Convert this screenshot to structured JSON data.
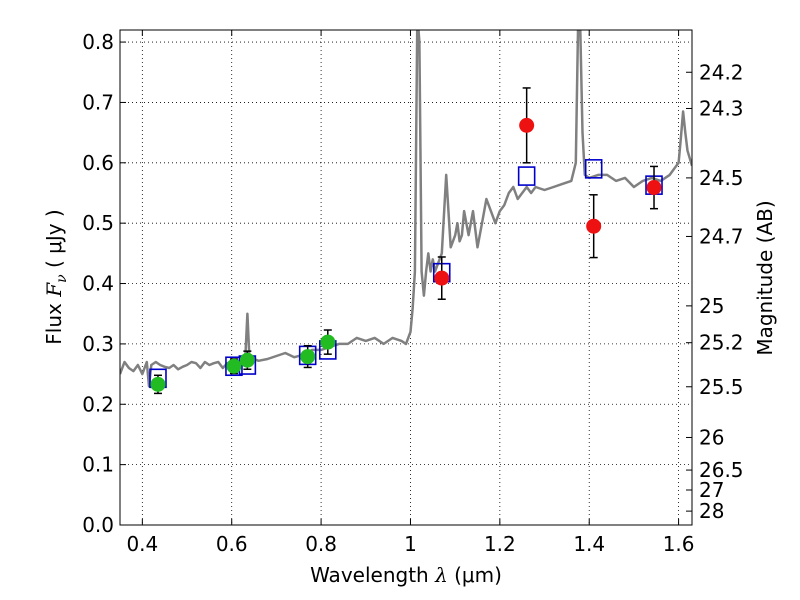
{
  "chart_data": {
    "type": "line",
    "xlabel": {
      "prefix": "Wavelength  ",
      "symbol": "λ",
      "unit": " (μm)"
    },
    "ylabel": {
      "prefix": "Flux  ",
      "symbol": "F",
      "sub": "ν",
      "unit": "  ( μJy )"
    },
    "ylabel_right": "Magnitude (AB)",
    "xlim": [
      0.35,
      1.63
    ],
    "ylim": [
      0.0,
      0.82
    ],
    "grid": true,
    "x_ticks": [
      0.4,
      0.6,
      0.8,
      1.0,
      1.2,
      1.4,
      1.6
    ],
    "x_tick_labels": [
      "0.4",
      "0.6",
      "0.8",
      "1",
      "1.2",
      "1.4",
      "1.6"
    ],
    "y_ticks": [
      0.0,
      0.1,
      0.2,
      0.3,
      0.4,
      0.5,
      0.6,
      0.7,
      0.8
    ],
    "y_tick_labels": [
      "0.0",
      "0.1",
      "0.2",
      "0.3",
      "0.4",
      "0.5",
      "0.6",
      "0.7",
      "0.8"
    ],
    "right_ticks": [
      {
        "label": "24.2",
        "flux": 0.75
      },
      {
        "label": "24.3",
        "flux": 0.69
      },
      {
        "label": "24.5",
        "flux": 0.575
      },
      {
        "label": "24.7",
        "flux": 0.478
      },
      {
        "label": "25",
        "flux": 0.363
      },
      {
        "label": "25.2",
        "flux": 0.302
      },
      {
        "label": "25.5",
        "flux": 0.229
      },
      {
        "label": "26",
        "flux": 0.145
      },
      {
        "label": "26.5",
        "flux": 0.091
      },
      {
        "label": "27",
        "flux": 0.058
      },
      {
        "label": "28",
        "flux": 0.023
      }
    ],
    "colors": {
      "spectrum": "#808080",
      "model_squares": "#0000cc",
      "green_points": "#22bb22",
      "red_points": "#ee1111",
      "grid": "#000000",
      "errorbar": "#000000"
    },
    "series": [
      {
        "kind": "spectrum",
        "x": [
          0.35,
          0.36,
          0.37,
          0.38,
          0.39,
          0.4,
          0.41,
          0.415,
          0.42,
          0.43,
          0.44,
          0.45,
          0.46,
          0.47,
          0.48,
          0.49,
          0.5,
          0.51,
          0.52,
          0.53,
          0.54,
          0.55,
          0.56,
          0.57,
          0.58,
          0.59,
          0.6,
          0.61,
          0.62,
          0.63,
          0.635,
          0.64,
          0.645,
          0.65,
          0.66,
          0.68,
          0.7,
          0.72,
          0.74,
          0.76,
          0.78,
          0.8,
          0.82,
          0.84,
          0.86,
          0.88,
          0.9,
          0.92,
          0.94,
          0.96,
          0.98,
          0.99,
          1.0,
          1.005,
          1.01,
          1.015,
          1.018,
          1.02,
          1.025,
          1.03,
          1.035,
          1.04,
          1.045,
          1.05,
          1.055,
          1.06,
          1.07,
          1.08,
          1.09,
          1.1,
          1.105,
          1.11,
          1.115,
          1.12,
          1.13,
          1.14,
          1.15,
          1.16,
          1.17,
          1.18,
          1.19,
          1.2,
          1.21,
          1.22,
          1.23,
          1.24,
          1.25,
          1.26,
          1.27,
          1.28,
          1.3,
          1.32,
          1.34,
          1.36,
          1.37,
          1.375,
          1.38,
          1.385,
          1.39,
          1.4,
          1.42,
          1.44,
          1.46,
          1.48,
          1.5,
          1.52,
          1.54,
          1.56,
          1.58,
          1.59,
          1.6,
          1.605,
          1.61,
          1.615,
          1.62,
          1.63
        ],
        "y": [
          0.25,
          0.27,
          0.26,
          0.255,
          0.265,
          0.25,
          0.27,
          0.23,
          0.265,
          0.27,
          0.265,
          0.262,
          0.26,
          0.265,
          0.258,
          0.262,
          0.265,
          0.27,
          0.268,
          0.26,
          0.27,
          0.265,
          0.268,
          0.27,
          0.26,
          0.268,
          0.27,
          0.26,
          0.268,
          0.27,
          0.35,
          0.27,
          0.28,
          0.275,
          0.272,
          0.275,
          0.28,
          0.285,
          0.278,
          0.282,
          0.29,
          0.29,
          0.295,
          0.3,
          0.3,
          0.31,
          0.305,
          0.31,
          0.3,
          0.31,
          0.305,
          0.3,
          0.32,
          0.36,
          0.42,
          0.82,
          0.82,
          0.8,
          0.42,
          0.38,
          0.42,
          0.45,
          0.42,
          0.44,
          0.42,
          0.43,
          0.45,
          0.58,
          0.46,
          0.48,
          0.5,
          0.47,
          0.48,
          0.52,
          0.48,
          0.52,
          0.46,
          0.5,
          0.54,
          0.52,
          0.5,
          0.52,
          0.53,
          0.55,
          0.56,
          0.54,
          0.55,
          0.56,
          0.55,
          0.56,
          0.555,
          0.56,
          0.565,
          0.57,
          0.6,
          0.82,
          0.82,
          0.65,
          0.58,
          0.575,
          0.58,
          0.58,
          0.57,
          0.575,
          0.56,
          0.57,
          0.575,
          0.57,
          0.58,
          0.59,
          0.6,
          0.64,
          0.685,
          0.65,
          0.62,
          0.595
        ]
      },
      {
        "kind": "model-squares",
        "x": [
          0.435,
          0.605,
          0.635,
          0.77,
          0.815,
          1.07,
          1.26,
          1.41,
          1.545
        ],
        "y": [
          0.243,
          0.263,
          0.265,
          0.281,
          0.29,
          0.418,
          0.578,
          0.59,
          0.563
        ]
      },
      {
        "kind": "green-points",
        "x": [
          0.435,
          0.605,
          0.635,
          0.77,
          0.815
        ],
        "y": [
          0.233,
          0.263,
          0.273,
          0.279,
          0.303
        ],
        "err": [
          0.015,
          0.012,
          0.015,
          0.018,
          0.02
        ]
      },
      {
        "kind": "red-points",
        "x": [
          1.07,
          1.26,
          1.41,
          1.545
        ],
        "y": [
          0.409,
          0.662,
          0.495,
          0.559
        ],
        "err": [
          0.035,
          0.062,
          0.052,
          0.035
        ]
      }
    ]
  }
}
